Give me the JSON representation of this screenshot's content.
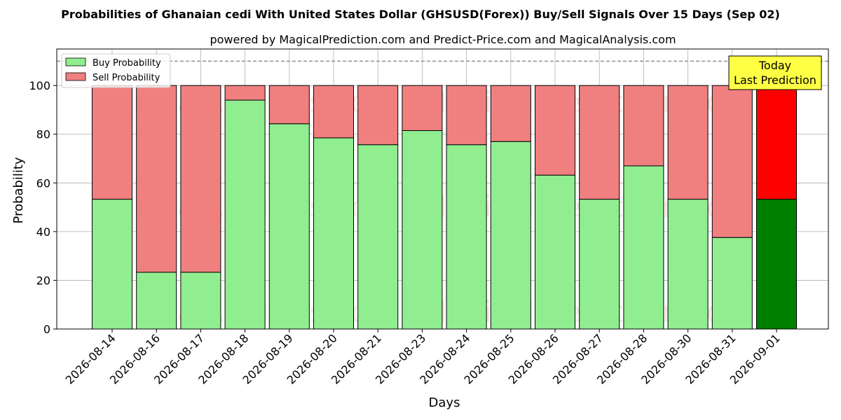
{
  "chart_data": {
    "type": "bar",
    "stacked": true,
    "title": "Probabilities of Ghanaian cedi With United States Dollar (GHSUSD(Forex)) Buy/Sell Signals Over 15 Days (Sep 02)",
    "subtitle": "powered by MagicalPrediction.com and Predict-Price.com and MagicalAnalysis.com",
    "xlabel": "Days",
    "ylabel": "Probability",
    "ylim": [
      0,
      115
    ],
    "yticks": [
      0,
      20,
      40,
      60,
      80,
      100
    ],
    "reference_line": 110,
    "grid": true,
    "legend_position": "top-left",
    "categories": [
      "2026-08-14",
      "2026-08-16",
      "2026-08-17",
      "2026-08-18",
      "2026-08-19",
      "2026-08-20",
      "2026-08-21",
      "2026-08-23",
      "2026-08-24",
      "2026-08-25",
      "2026-08-26",
      "2026-08-27",
      "2026-08-28",
      "2026-08-30",
      "2026-08-31",
      "2026-09-01"
    ],
    "series": [
      {
        "name": "Buy Probability",
        "color": "#90ee90",
        "highlight_color": "#008000",
        "values": [
          53.3,
          23.3,
          23.3,
          94.0,
          84.3,
          78.5,
          75.7,
          81.5,
          75.7,
          77.0,
          63.2,
          53.3,
          67.0,
          53.3,
          37.6,
          53.3
        ]
      },
      {
        "name": "Sell Probability",
        "color": "#f08080",
        "highlight_color": "#ff0000",
        "values": [
          46.7,
          76.7,
          76.7,
          6.0,
          15.7,
          21.5,
          24.3,
          18.5,
          24.3,
          23.0,
          36.8,
          46.7,
          33.0,
          46.7,
          62.4,
          46.7
        ]
      }
    ],
    "highlight_index": 15,
    "annotation": {
      "line1": "Today",
      "line2": "Last Prediction",
      "bg_color": "#ffff44"
    },
    "watermarks": [
      "MagicalAnalysis.com",
      "MagicalPrediction.com"
    ]
  }
}
